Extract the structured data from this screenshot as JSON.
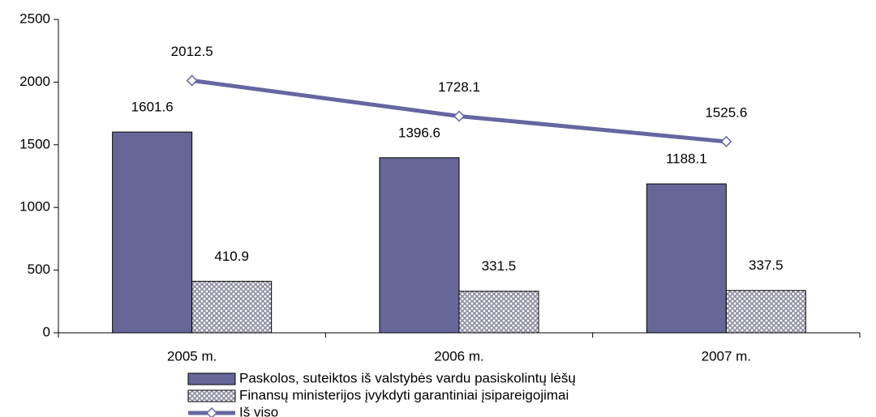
{
  "chart_data": {
    "type": "bar",
    "categories": [
      "2005 m.",
      "2006 m.",
      "2007 m."
    ],
    "series": [
      {
        "name": "Paskolos, suteiktos iš valstybės vardu pasiskolintų lėšų",
        "color": "#666699",
        "values": [
          1601.6,
          1396.6,
          1188.1
        ]
      },
      {
        "name": "Finansų ministerijos įvykdyti garantiniai įsipareigojimai",
        "color": "#8c8ca0",
        "pattern": "crosshatch",
        "values": [
          410.9,
          331.5,
          337.5
        ]
      },
      {
        "name": "Iš viso",
        "color": "#6666a0",
        "type": "line",
        "values": [
          2012.5,
          1728.1,
          1525.6
        ]
      }
    ],
    "ylim": [
      0,
      2500
    ],
    "yticks": [
      0,
      500,
      1000,
      1500,
      2000,
      2500
    ],
    "grid": false
  }
}
